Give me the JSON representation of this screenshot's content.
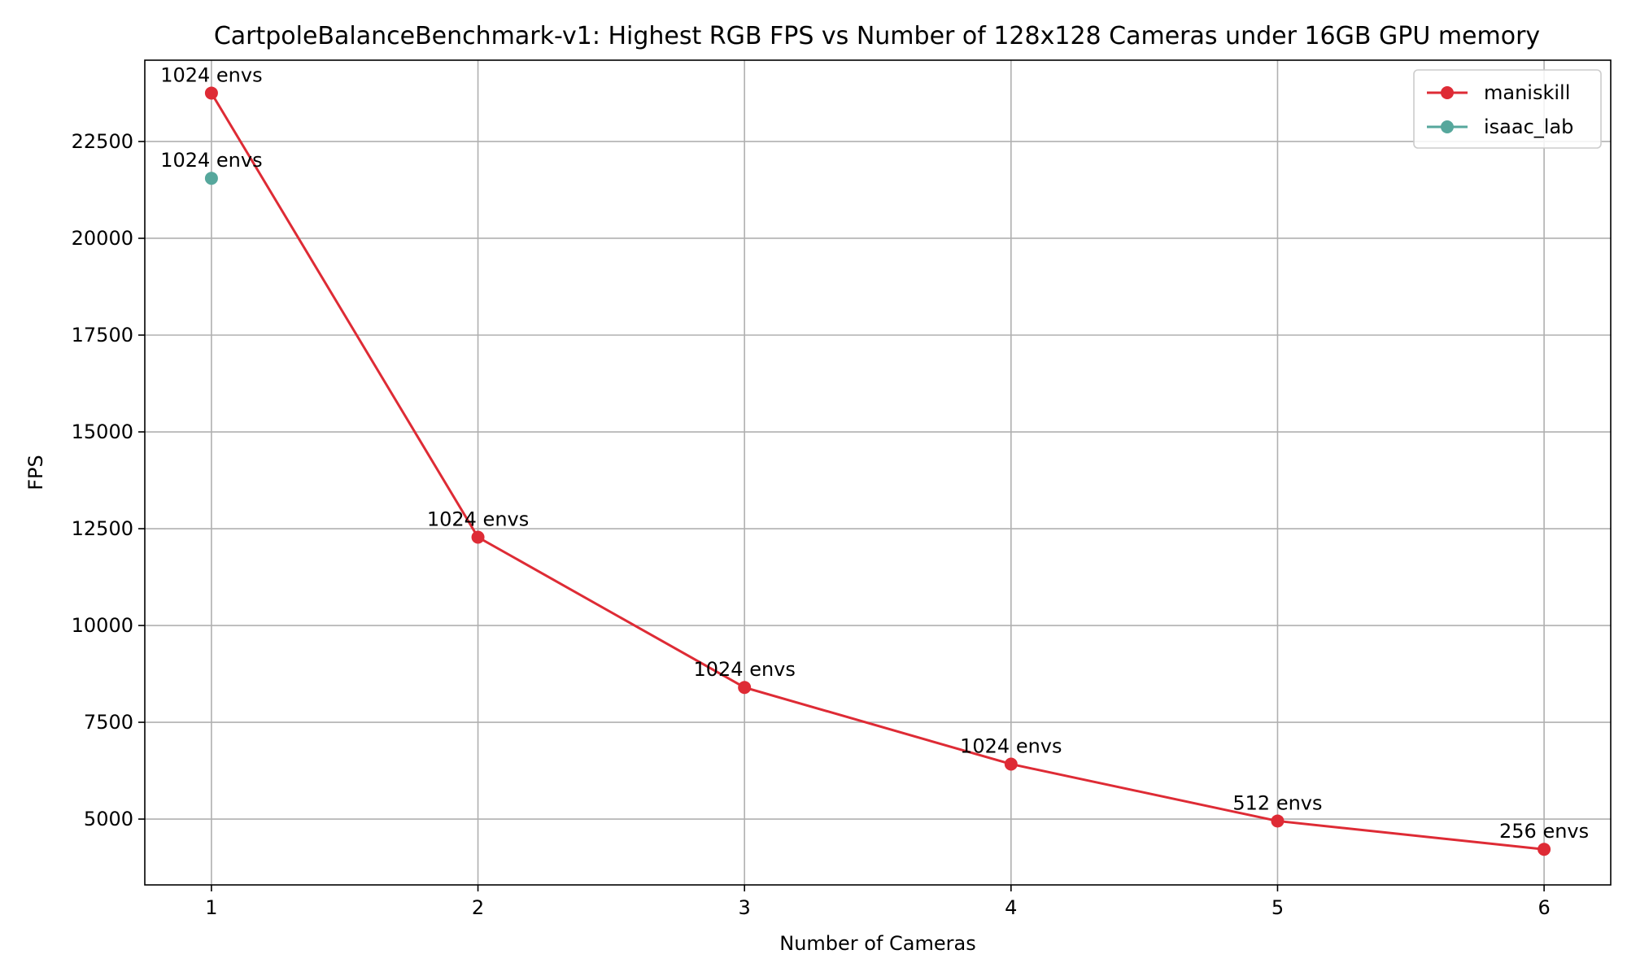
{
  "chart_data": {
    "type": "line",
    "title": "CartpoleBalanceBenchmark-v1: Highest RGB FPS vs Number of 128x128 Cameras under 16GB GPU memory",
    "xlabel": "Number of Cameras",
    "ylabel": "FPS",
    "xlim": [
      0.75,
      6.25
    ],
    "ylim": [
      3300,
      24600
    ],
    "xticks": [
      1,
      2,
      3,
      4,
      5,
      6
    ],
    "yticks": [
      5000,
      7500,
      10000,
      12500,
      15000,
      17500,
      20000,
      22500
    ],
    "grid": true,
    "legend_position": "top-right",
    "series": [
      {
        "name": "maniskill",
        "color": "#de2b35",
        "x": [
          1,
          2,
          3,
          4,
          5,
          6
        ],
        "y": [
          23750,
          12280,
          8400,
          6420,
          4950,
          4220
        ],
        "labels": [
          "1024 envs",
          "1024 envs",
          "1024 envs",
          "1024 envs",
          "512 envs",
          "256 envs"
        ]
      },
      {
        "name": "isaac_lab",
        "color": "#56a79c",
        "x": [
          1
        ],
        "y": [
          21550
        ],
        "labels": [
          "1024 envs"
        ]
      }
    ]
  }
}
